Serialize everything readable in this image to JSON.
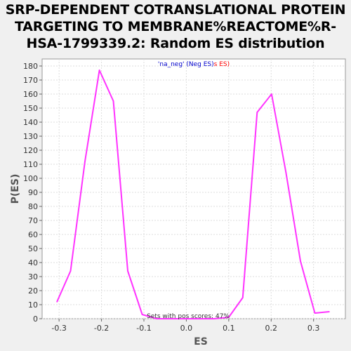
{
  "chart_data": {
    "type": "line",
    "title_lines": [
      "SRP-DEPENDENT COTRANSLATIONAL PROTEIN",
      "TARGETING TO MEMBRANE%REACTOME%R-",
      "HSA-1799339.2: Random ES distribution"
    ],
    "xlabel": "ES",
    "ylabel": "P(ES)",
    "xlim": [
      -0.34,
      0.375
    ],
    "ylim": [
      0,
      185
    ],
    "x_ticks": [
      -0.3,
      -0.2,
      -0.1,
      0.0,
      0.1,
      0.2,
      0.3
    ],
    "x_tick_labels": [
      "-0.3",
      "-0.2",
      "-0.1",
      "0.0",
      "0.1",
      "0.2",
      "0.3"
    ],
    "y_ticks": [
      0,
      10,
      20,
      30,
      40,
      50,
      60,
      70,
      80,
      90,
      100,
      110,
      120,
      130,
      140,
      150,
      160,
      170,
      180
    ],
    "grid": true,
    "legend_placement": "top-center",
    "legend_neg": "'na_neg' (Neg ES)",
    "legend_pos": "s ES)",
    "annotation": "Sets with pos scores: 47%",
    "colors": {
      "line": "#ff33ff",
      "neg_legend": "#0000cc",
      "pos_legend": "#ff0000",
      "grid": "#dddddd"
    },
    "series": [
      {
        "x": [
          -0.305,
          -0.273,
          -0.239,
          -0.205,
          -0.172,
          -0.138,
          -0.104,
          -0.07,
          -0.036,
          -0.002,
          0.032,
          0.066,
          0.1,
          0.133,
          0.167,
          0.201,
          0.235,
          0.269,
          0.303,
          0.337
        ],
        "y": [
          12,
          34,
          112,
          177,
          155,
          34,
          3,
          0,
          0,
          0,
          0,
          0,
          1,
          15,
          147,
          160,
          104,
          41,
          4,
          5
        ]
      }
    ]
  }
}
